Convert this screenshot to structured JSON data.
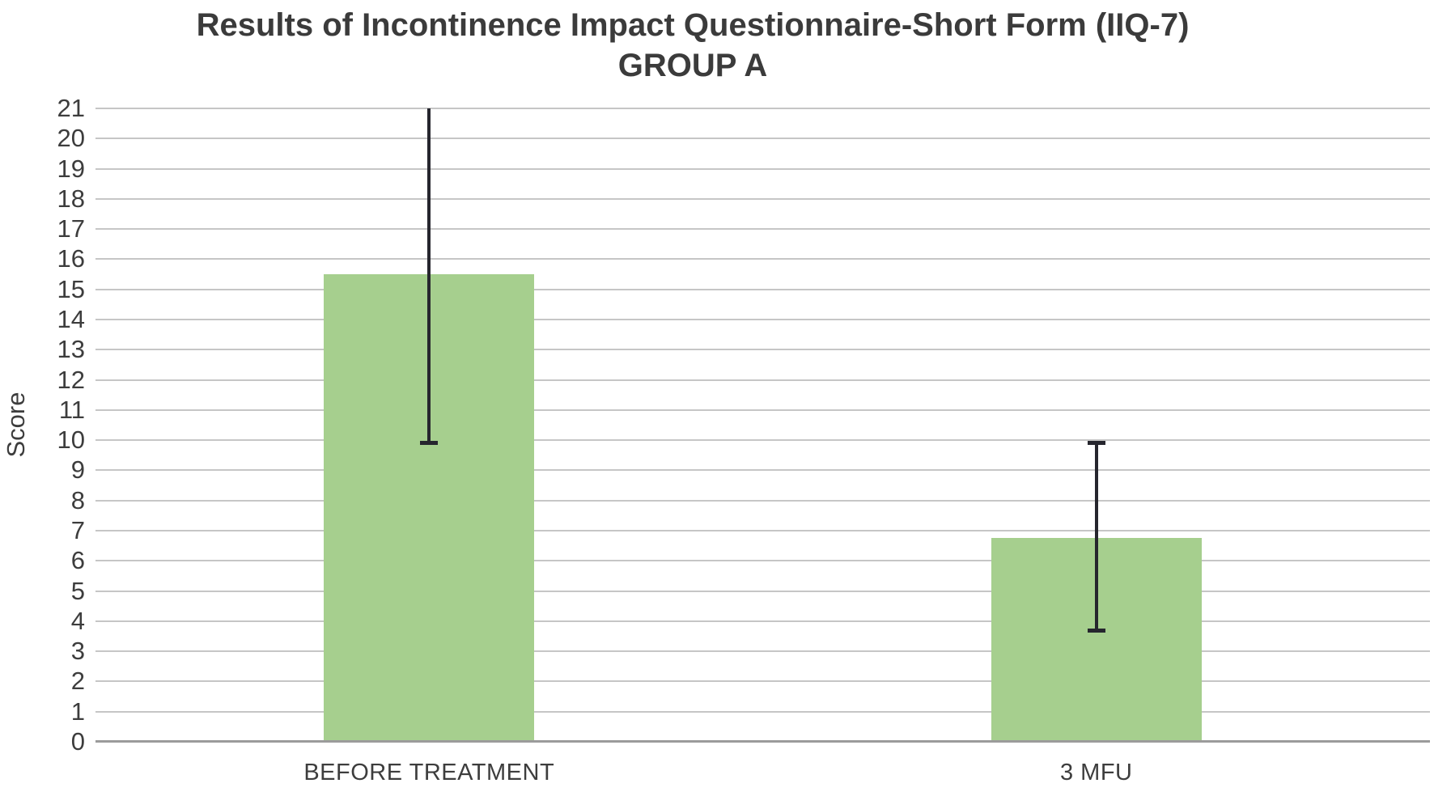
{
  "title": {
    "line1": "Results of Incontinence Impact Questionnaire-Short Form (IIQ-7)",
    "line2": "GROUP A"
  },
  "chart_data": {
    "type": "bar",
    "title": "Results of Incontinence Impact Questionnaire-Short Form (IIQ-7) GROUP A",
    "categories": [
      "BEFORE TREATMENT",
      "3 MFU"
    ],
    "values": [
      15.5,
      6.75
    ],
    "error_low": [
      9.9,
      3.7
    ],
    "error_high": [
      21.0,
      9.9
    ],
    "error_high_cap_visible": [
      false,
      true
    ],
    "xlabel": "",
    "ylabel": "Score",
    "ylim": [
      0,
      21
    ],
    "ytick_step": 1,
    "grid": "horizontal",
    "legend": "none",
    "colors": {
      "bar_fill": "#A6CF8E",
      "error_bar": "#26262E",
      "gridline": "#C6C6C6",
      "axis_line": "#9B9B9B",
      "text": "#3B3B3B"
    }
  }
}
